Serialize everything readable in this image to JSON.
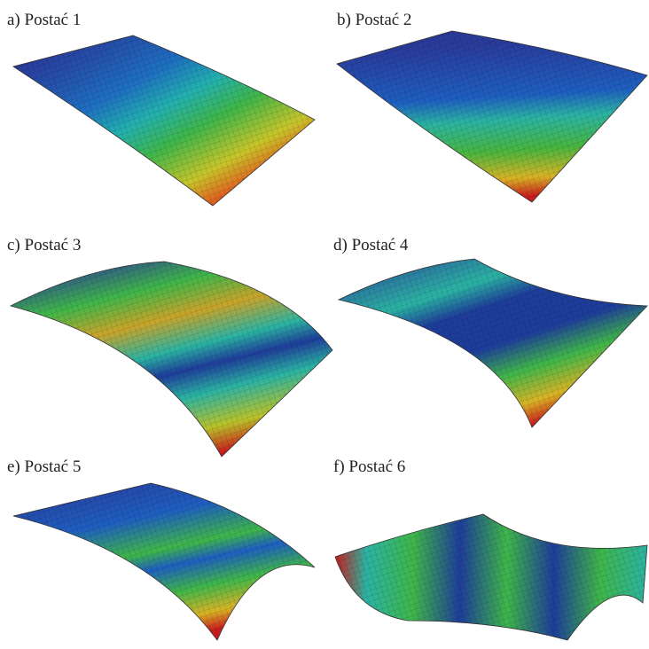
{
  "panels": [
    {
      "label": "a) Postać 1"
    },
    {
      "label": "b) Postać 2"
    },
    {
      "label": "c) Postać 3"
    },
    {
      "label": "d) Postać 4"
    },
    {
      "label": "e) Postać 5"
    },
    {
      "label": "f) Postać 6"
    }
  ]
}
